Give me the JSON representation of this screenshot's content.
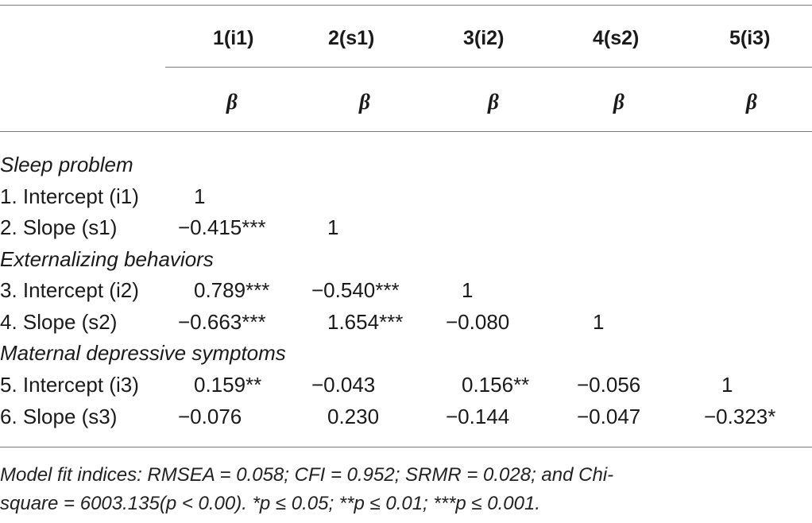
{
  "columns": [
    "1(i1)",
    "2(s1)",
    "3(i2)",
    "4(s2)",
    "5(i3)"
  ],
  "stat_label": "β",
  "sections": [
    {
      "title": "Sleep problem",
      "rows": [
        {
          "label": "1. Intercept (i1)",
          "cells": [
            "1",
            "",
            "",
            "",
            ""
          ]
        },
        {
          "label": "2. Slope (s1)",
          "cells": [
            "−0.415***",
            "1",
            "",
            "",
            ""
          ]
        }
      ]
    },
    {
      "title": "Externalizing behaviors",
      "rows": [
        {
          "label": "3. Intercept (i2)",
          "cells": [
            "0.789***",
            "−0.540***",
            "1",
            "",
            ""
          ]
        },
        {
          "label": "4. Slope (s2)",
          "cells": [
            "−0.663***",
            "1.654***",
            "−0.080",
            "1",
            ""
          ]
        }
      ]
    },
    {
      "title": "Maternal depressive symptoms",
      "rows": [
        {
          "label": "5. Intercept (i3)",
          "cells": [
            "0.159**",
            "−0.043",
            "0.156**",
            "−0.056",
            "1"
          ]
        },
        {
          "label": "6. Slope (s3)",
          "cells": [
            "−0.076",
            "0.230",
            "−0.144",
            "−0.047",
            "−0.323*"
          ]
        }
      ]
    }
  ],
  "footnote": {
    "line1": "Model fit indices: RMSEA = 0.058; CFI = 0.952; SRMR = 0.028; and Chi-",
    "line2": "square = 6003.135(p < 0.00).  *p ≤ 0.05; **p ≤ 0.01; ***p ≤ 0.001."
  }
}
